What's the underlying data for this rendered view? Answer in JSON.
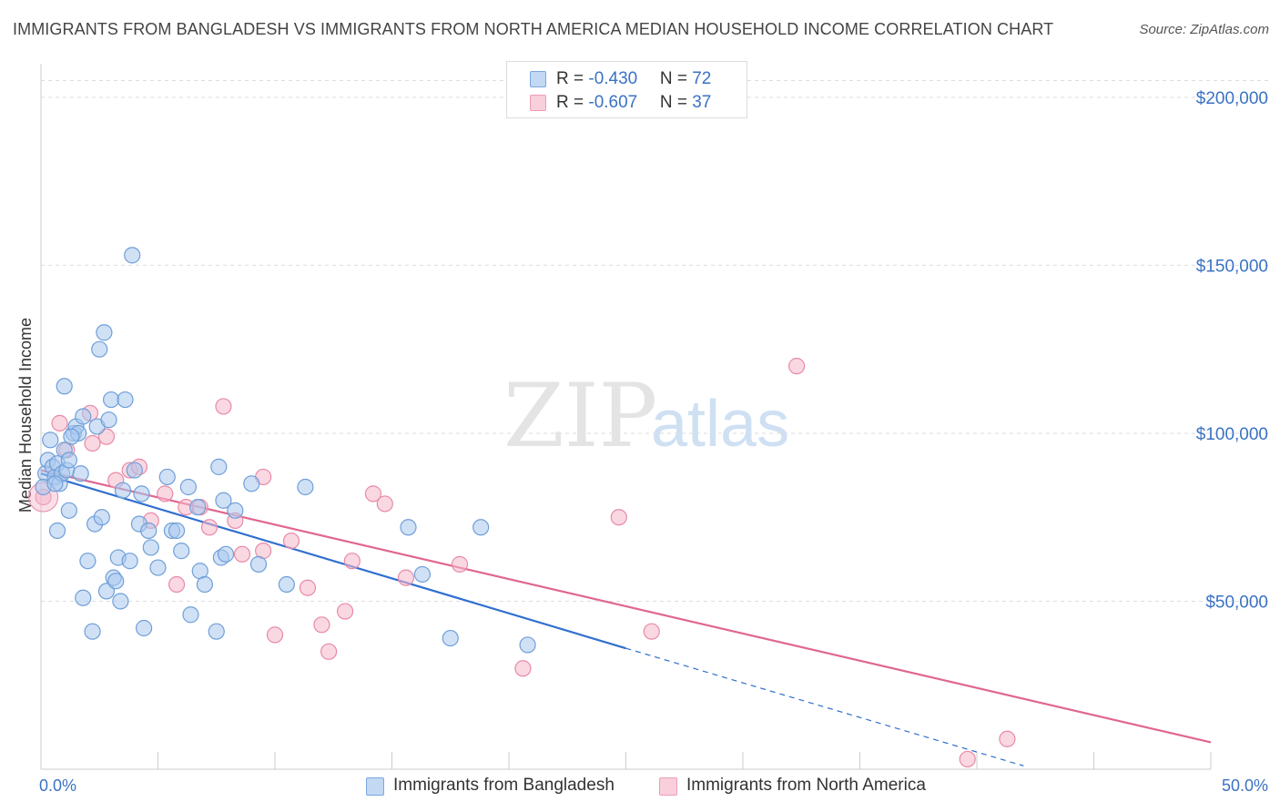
{
  "header": {
    "title": "IMMIGRANTS FROM BANGLADESH VS IMMIGRANTS FROM NORTH AMERICA MEDIAN HOUSEHOLD INCOME CORRELATION CHART",
    "source": "Source: ZipAtlas.com"
  },
  "watermark": {
    "zip": "ZIP",
    "atlas": "atlas"
  },
  "legend": {
    "rows": [
      {
        "r_label": "R = ",
        "r_value": "-0.430",
        "n_label": "N = ",
        "n_value": "72"
      },
      {
        "r_label": "R = ",
        "r_value": "-0.607",
        "n_label": "N = ",
        "n_value": "37"
      }
    ]
  },
  "colors": {
    "blue_fill": "#a9c8ee",
    "blue_stroke": "#6f9fd8",
    "blue_line": "#2f6fcf",
    "pink_fill": "#f5b8cb",
    "pink_stroke": "#e88aa7",
    "pink_line": "#e06690",
    "grid": "#dddddd",
    "tick_text": "#3b72c4"
  },
  "chart_data": {
    "type": "scatter",
    "xlabel": "",
    "ylabel": "Median Household Income",
    "xlim": [
      0,
      50
    ],
    "ylim": [
      0,
      210000
    ],
    "x_tick_labels": [
      "0.0%",
      "50.0%"
    ],
    "y_ticks": [
      {
        "value": 50000,
        "label": "$50,000"
      },
      {
        "value": 100000,
        "label": "$100,000"
      },
      {
        "value": 150000,
        "label": "$150,000"
      },
      {
        "value": 200000,
        "label": "$200,000"
      }
    ],
    "grid": "horizontal dashed",
    "series": [
      {
        "name": "Immigrants from Bangladesh",
        "color": "blue",
        "trend": {
          "x0": 0,
          "y0": 88000,
          "x1": 25,
          "y1": 36000,
          "dash_to_x": 42,
          "dash_to_y": 1000
        },
        "points": [
          [
            0.2,
            88000
          ],
          [
            0.3,
            92000
          ],
          [
            0.4,
            98000
          ],
          [
            0.5,
            90000
          ],
          [
            0.6,
            87000
          ],
          [
            0.7,
            91000
          ],
          [
            0.7,
            71000
          ],
          [
            0.8,
            85000
          ],
          [
            0.9,
            88000
          ],
          [
            1.0,
            114000
          ],
          [
            1.0,
            95000
          ],
          [
            1.1,
            89000
          ],
          [
            1.2,
            92000
          ],
          [
            1.2,
            77000
          ],
          [
            1.4,
            100000
          ],
          [
            1.5,
            102000
          ],
          [
            1.6,
            100000
          ],
          [
            1.7,
            88000
          ],
          [
            1.8,
            105000
          ],
          [
            1.8,
            51000
          ],
          [
            2.0,
            62000
          ],
          [
            2.2,
            41000
          ],
          [
            2.3,
            73000
          ],
          [
            2.4,
            102000
          ],
          [
            2.5,
            125000
          ],
          [
            2.6,
            75000
          ],
          [
            2.7,
            130000
          ],
          [
            2.8,
            53000
          ],
          [
            2.9,
            104000
          ],
          [
            3.0,
            110000
          ],
          [
            3.1,
            57000
          ],
          [
            3.2,
            56000
          ],
          [
            3.3,
            63000
          ],
          [
            3.4,
            50000
          ],
          [
            3.5,
            83000
          ],
          [
            3.6,
            110000
          ],
          [
            3.8,
            62000
          ],
          [
            3.9,
            153000
          ],
          [
            4.0,
            89000
          ],
          [
            4.2,
            73000
          ],
          [
            4.3,
            82000
          ],
          [
            4.4,
            42000
          ],
          [
            4.6,
            71000
          ],
          [
            4.7,
            66000
          ],
          [
            5.0,
            60000
          ],
          [
            5.4,
            87000
          ],
          [
            5.6,
            71000
          ],
          [
            5.8,
            71000
          ],
          [
            6.0,
            65000
          ],
          [
            6.3,
            84000
          ],
          [
            6.4,
            46000
          ],
          [
            6.7,
            78000
          ],
          [
            6.8,
            59000
          ],
          [
            7.0,
            55000
          ],
          [
            7.5,
            41000
          ],
          [
            7.6,
            90000
          ],
          [
            7.7,
            63000
          ],
          [
            7.8,
            80000
          ],
          [
            7.9,
            64000
          ],
          [
            8.3,
            77000
          ],
          [
            9.0,
            85000
          ],
          [
            9.3,
            61000
          ],
          [
            10.5,
            55000
          ],
          [
            11.3,
            84000
          ],
          [
            15.7,
            72000
          ],
          [
            16.3,
            58000
          ],
          [
            17.5,
            39000
          ],
          [
            18.8,
            72000
          ],
          [
            20.8,
            37000
          ],
          [
            0.1,
            84000
          ],
          [
            0.6,
            85000
          ],
          [
            1.3,
            99000
          ]
        ]
      },
      {
        "name": "Immigrants from North America",
        "color": "pink",
        "trend": {
          "x0": 0,
          "y0": 89000,
          "x1": 50,
          "y1": 8000
        },
        "points": [
          [
            0.1,
            81000
          ],
          [
            0.8,
            103000
          ],
          [
            2.1,
            106000
          ],
          [
            2.2,
            97000
          ],
          [
            2.8,
            99000
          ],
          [
            3.2,
            86000
          ],
          [
            3.8,
            89000
          ],
          [
            4.2,
            90000
          ],
          [
            4.7,
            74000
          ],
          [
            5.3,
            82000
          ],
          [
            5.8,
            55000
          ],
          [
            6.2,
            78000
          ],
          [
            6.8,
            78000
          ],
          [
            7.2,
            72000
          ],
          [
            7.8,
            108000
          ],
          [
            8.3,
            74000
          ],
          [
            8.6,
            64000
          ],
          [
            9.5,
            87000
          ],
          [
            9.5,
            65000
          ],
          [
            10.0,
            40000
          ],
          [
            10.7,
            68000
          ],
          [
            11.4,
            54000
          ],
          [
            12.0,
            43000
          ],
          [
            12.3,
            35000
          ],
          [
            13.0,
            47000
          ],
          [
            13.3,
            62000
          ],
          [
            14.2,
            82000
          ],
          [
            14.7,
            79000
          ],
          [
            15.6,
            57000
          ],
          [
            17.9,
            61000
          ],
          [
            20.6,
            30000
          ],
          [
            24.7,
            75000
          ],
          [
            26.1,
            41000
          ],
          [
            32.3,
            120000
          ],
          [
            39.6,
            3000
          ],
          [
            41.3,
            9000
          ],
          [
            1.1,
            95000
          ]
        ]
      }
    ]
  },
  "bottom_legend": {
    "items": [
      {
        "label": "Immigrants from Bangladesh"
      },
      {
        "label": "Immigrants from North America"
      }
    ]
  }
}
